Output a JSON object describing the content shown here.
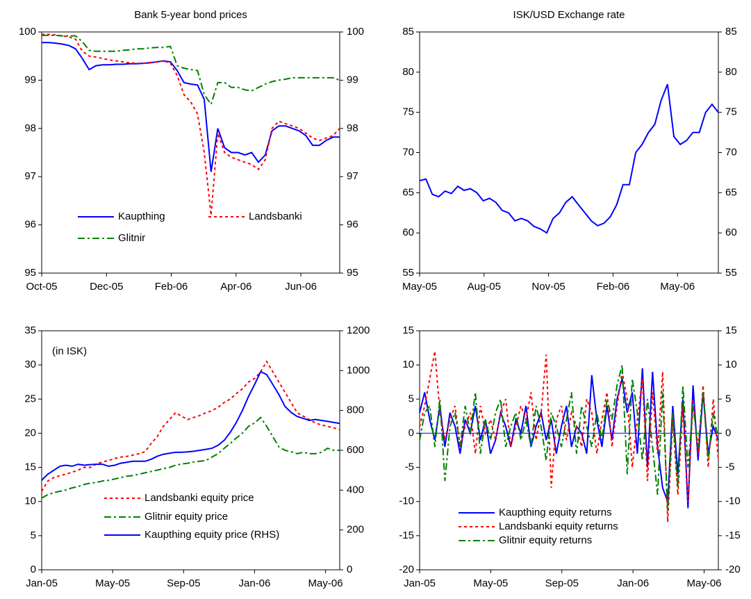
{
  "chart_data": [
    {
      "type": "line",
      "title": "Bank 5-year bond prices",
      "xlim": [
        0,
        9.2
      ],
      "xticks": [
        {
          "value": 0,
          "label": "Oct-05"
        },
        {
          "value": 2,
          "label": "Dec-05"
        },
        {
          "value": 4,
          "label": "Feb-06"
        },
        {
          "value": 6,
          "label": "Apr-06"
        },
        {
          "value": 8,
          "label": "Jun-06"
        }
      ],
      "ylim": [
        95,
        100
      ],
      "yticks": [
        95,
        96,
        97,
        98,
        99,
        100
      ],
      "right_ticks": true,
      "series": [
        {
          "name": "Kaupthing",
          "color": "#0000ff",
          "style": "solid",
          "values": [
            99.78,
            99.78,
            99.77,
            99.75,
            99.72,
            99.65,
            99.45,
            99.22,
            99.3,
            99.32,
            99.32,
            99.33,
            99.33,
            99.34,
            99.34,
            99.35,
            99.36,
            99.38,
            99.4,
            99.38,
            99.2,
            98.95,
            98.92,
            98.9,
            98.6,
            97.1,
            98.0,
            97.6,
            97.5,
            97.5,
            97.45,
            97.5,
            97.3,
            97.45,
            97.95,
            98.05,
            98.05,
            98.0,
            97.95,
            97.85,
            97.65,
            97.65,
            97.75,
            97.82,
            97.82
          ]
        },
        {
          "name": "Landsbanki",
          "color": "#ff0000",
          "style": "dotted",
          "values": [
            99.95,
            99.95,
            99.94,
            99.92,
            99.9,
            99.85,
            99.6,
            99.5,
            99.48,
            99.45,
            99.42,
            99.4,
            99.38,
            99.36,
            99.35,
            99.35,
            99.37,
            99.38,
            99.4,
            99.35,
            99.1,
            98.7,
            98.55,
            98.3,
            97.5,
            96.2,
            97.9,
            97.5,
            97.4,
            97.35,
            97.3,
            97.25,
            97.15,
            97.35,
            98.0,
            98.15,
            98.1,
            98.05,
            98.0,
            97.9,
            97.8,
            97.75,
            97.8,
            97.85,
            98.0
          ]
        },
        {
          "name": "Glitnir",
          "color": "#008000",
          "style": "dashdot",
          "values": [
            99.93,
            99.93,
            99.93,
            99.92,
            99.92,
            99.92,
            99.8,
            99.62,
            99.6,
            99.6,
            99.6,
            99.6,
            99.62,
            99.63,
            99.65,
            99.65,
            99.67,
            99.68,
            99.68,
            99.7,
            99.3,
            99.25,
            99.22,
            99.2,
            98.7,
            98.5,
            98.95,
            98.95,
            98.85,
            98.85,
            98.8,
            98.78,
            98.85,
            98.92,
            98.97,
            99.0,
            99.02,
            99.05,
            99.05,
            99.05,
            99.05,
            99.05,
            99.05,
            99.05,
            99.0
          ]
        }
      ]
    },
    {
      "type": "line",
      "title": "ISK/USD Exchange rate",
      "xlim": [
        0,
        13.9
      ],
      "xticks": [
        {
          "value": 0,
          "label": "May-05"
        },
        {
          "value": 3,
          "label": "Aug-05"
        },
        {
          "value": 6,
          "label": "Nov-05"
        },
        {
          "value": 9,
          "label": "Feb-06"
        },
        {
          "value": 12,
          "label": "May-06"
        }
      ],
      "ylim": [
        55,
        85
      ],
      "yticks": [
        55,
        60,
        65,
        70,
        75,
        80,
        85
      ],
      "right_ticks": true,
      "series": [
        {
          "color": "#0000ff",
          "style": "solid",
          "values": [
            66.5,
            66.7,
            64.8,
            64.5,
            65.2,
            64.9,
            65.8,
            65.3,
            65.5,
            65.0,
            64.0,
            64.3,
            63.8,
            62.8,
            62.5,
            61.5,
            61.8,
            61.5,
            60.8,
            60.5,
            60.0,
            61.8,
            62.5,
            63.8,
            64.5,
            63.5,
            62.5,
            61.5,
            60.9,
            61.2,
            62.0,
            63.5,
            66.0,
            66.0,
            70.0,
            71.0,
            72.5,
            73.5,
            76.5,
            78.5,
            72.0,
            71.0,
            71.5,
            72.5,
            72.5,
            75.0,
            76.0,
            75.0
          ]
        }
      ]
    },
    {
      "type": "line",
      "annotation": "(in ISK)",
      "xlim": [
        0,
        16.8
      ],
      "xticks": [
        {
          "value": 0,
          "label": "Jan-05"
        },
        {
          "value": 4,
          "label": "May-05"
        },
        {
          "value": 8,
          "label": "Sep-05"
        },
        {
          "value": 12,
          "label": "Jan-06"
        },
        {
          "value": 16,
          "label": "May-06"
        }
      ],
      "ylim": [
        0,
        35
      ],
      "yticks": [
        0,
        5,
        10,
        15,
        20,
        25,
        30,
        35
      ],
      "y2lim": [
        0,
        1200
      ],
      "y2ticks": [
        0,
        200,
        400,
        600,
        800,
        1000,
        1200
      ],
      "series": [
        {
          "name": "Landsbanki equity price",
          "color": "#ff0000",
          "style": "dotted",
          "values": [
            11.5,
            13,
            13.5,
            13.8,
            14,
            14.3,
            14.6,
            15,
            15,
            15.5,
            15.8,
            16,
            16.3,
            16.5,
            16.6,
            16.8,
            17,
            17.3,
            18.5,
            19.5,
            21,
            22,
            23,
            22.5,
            22,
            22.3,
            22.6,
            23,
            23.3,
            23.8,
            24.5,
            25,
            25.8,
            26.5,
            27.5,
            28,
            29,
            30.5,
            29,
            27.5,
            26,
            24.5,
            23,
            22.5,
            22,
            21.5,
            21.2,
            21,
            20.8,
            20.5
          ]
        },
        {
          "name": "Glitnir equity price",
          "color": "#008000",
          "style": "dashdot",
          "values": [
            10.5,
            11,
            11.3,
            11.5,
            11.7,
            12,
            12.2,
            12.5,
            12.7,
            12.8,
            13,
            13.1,
            13.3,
            13.5,
            13.7,
            13.8,
            14,
            14.2,
            14.4,
            14.6,
            14.8,
            15,
            15.3,
            15.5,
            15.6,
            15.8,
            15.9,
            16,
            16.5,
            17,
            17.8,
            18.5,
            19.3,
            20,
            21,
            21.5,
            22.3,
            21,
            19.5,
            18,
            17.5,
            17.3,
            17,
            17.2,
            17,
            17,
            17.2,
            17.8,
            17.5,
            17.5
          ]
        },
        {
          "name": "Kaupthing equity price (RHS)",
          "color": "#0000ff",
          "style": "solid",
          "axis": "y2",
          "values": [
            450,
            480,
            500,
            520,
            525,
            520,
            530,
            525,
            528,
            530,
            530,
            520,
            525,
            535,
            540,
            545,
            545,
            545,
            555,
            570,
            580,
            585,
            590,
            590,
            592,
            595,
            600,
            605,
            610,
            625,
            650,
            690,
            740,
            800,
            870,
            930,
            995,
            980,
            930,
            880,
            820,
            790,
            770,
            760,
            750,
            755,
            750,
            745,
            740,
            735
          ]
        }
      ]
    },
    {
      "type": "line",
      "zero_line": true,
      "xlim": [
        0,
        16.8
      ],
      "xticks": [
        {
          "value": 0,
          "label": "Jan-05"
        },
        {
          "value": 4,
          "label": "May-05"
        },
        {
          "value": 8,
          "label": "Sep-05"
        },
        {
          "value": 12,
          "label": "Jan-06"
        },
        {
          "value": 16,
          "label": "May-06"
        }
      ],
      "ylim": [
        -20,
        15
      ],
      "yticks": [
        -20,
        -15,
        -10,
        -5,
        0,
        5,
        10,
        15
      ],
      "right_ticks": true,
      "series": [
        {
          "name": "Kaupthing equity returns",
          "color": "#0000ff",
          "style": "solid",
          "values": [
            3,
            6,
            2,
            -1,
            4,
            -2,
            3,
            1,
            -3,
            2,
            0,
            4,
            -1,
            2,
            -3,
            -1,
            3,
            1,
            -2,
            2,
            0,
            4,
            -2,
            1,
            3,
            -1,
            2,
            -3,
            1,
            4,
            -2,
            1,
            0,
            -3,
            8.5,
            2,
            -2,
            4,
            -1,
            5,
            8,
            3,
            6,
            -3,
            9.5,
            -5,
            9,
            -2,
            -8,
            -10,
            4,
            -6,
            5,
            -11,
            7,
            -4,
            6,
            -3,
            1,
            -1
          ]
        },
        {
          "name": "Landsbanki equity returns",
          "color": "#ff0000",
          "style": "dotted",
          "values": [
            1,
            4,
            8,
            12,
            3,
            -1,
            2,
            4,
            -2,
            1,
            3,
            -3,
            4,
            0,
            2,
            -1,
            3,
            5,
            -2,
            1,
            4,
            2,
            6,
            -1,
            3,
            11.5,
            -8,
            2,
            4,
            -1,
            3,
            1,
            -2,
            5,
            3,
            -3,
            2,
            6,
            -2,
            4,
            9,
            5,
            -5,
            2,
            8,
            -7,
            6,
            -3,
            9,
            -13,
            2,
            -9,
            4,
            -10,
            5,
            -3,
            7,
            -5,
            5,
            -4
          ]
        },
        {
          "name": "Glitnir equity returns",
          "color": "#008000",
          "style": "dashdot",
          "values": [
            -1,
            3,
            4,
            -2,
            5,
            -7,
            1,
            3,
            -2,
            4,
            0,
            6,
            -3,
            2,
            -1,
            3,
            5,
            -2,
            1,
            3,
            -1,
            2,
            -2,
            4,
            1,
            -4,
            3,
            1,
            -2,
            2,
            6,
            -3,
            4,
            1,
            -2,
            3,
            -1,
            5,
            2,
            7,
            10,
            -6,
            8,
            3,
            -4,
            5,
            -2,
            -9,
            6,
            -11.5,
            3,
            -8,
            7,
            -5,
            4,
            -2,
            6,
            -4,
            3,
            -1
          ]
        }
      ]
    }
  ]
}
